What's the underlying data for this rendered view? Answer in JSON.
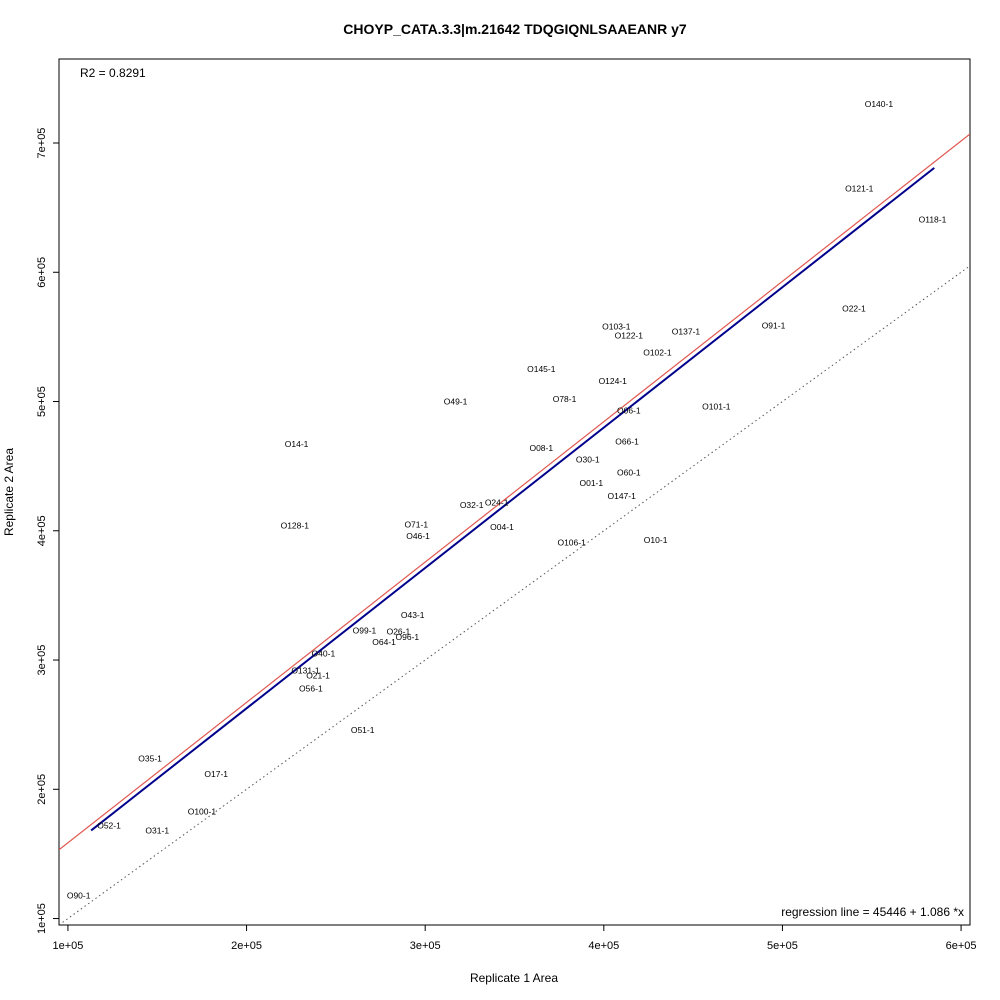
{
  "chart_data": {
    "type": "scatter",
    "title": "CHOYP_CATA.3.3|m.21642 TDQGIQNLSAAEANR y7",
    "xlabel": "Replicate 1 Area",
    "ylabel": "Replicate 2 Area",
    "xlim": [
      95000,
      605000
    ],
    "ylim": [
      95000,
      765000
    ],
    "x_ticks": [
      {
        "value": 100000,
        "label": "1e+05"
      },
      {
        "value": 200000,
        "label": "2e+05"
      },
      {
        "value": 300000,
        "label": "3e+05"
      },
      {
        "value": 400000,
        "label": "4e+05"
      },
      {
        "value": 500000,
        "label": "5e+05"
      },
      {
        "value": 600000,
        "label": "6e+05"
      }
    ],
    "y_ticks": [
      {
        "value": 100000,
        "label": "1e+05"
      },
      {
        "value": 200000,
        "label": "2e+05"
      },
      {
        "value": 300000,
        "label": "3e+05"
      },
      {
        "value": 400000,
        "label": "4e+05"
      },
      {
        "value": 500000,
        "label": "5e+05"
      },
      {
        "value": 600000,
        "label": "6e+05"
      },
      {
        "value": 700000,
        "label": "7e+05"
      }
    ],
    "grid": false,
    "r2_text": "R2 = 0.8291",
    "regression_text": "regression line = 45446 + 1.086 *x",
    "regression": {
      "intercept": 45446,
      "slope": 1.086,
      "x_range": [
        113000,
        585000
      ],
      "color": "#00008b"
    },
    "reference_line": {
      "intercept": 50000,
      "slope": 1.086,
      "color": "#e0564f"
    },
    "identity_line": {
      "intercept": 0,
      "slope": 1,
      "color": "#555555"
    },
    "points": [
      {
        "label": "O140-1",
        "x": 554000,
        "y": 730000
      },
      {
        "label": "O121-1",
        "x": 543000,
        "y": 665000
      },
      {
        "label": "O118-1",
        "x": 584000,
        "y": 641000
      },
      {
        "label": "O22-1",
        "x": 540000,
        "y": 572000
      },
      {
        "label": "O91-1",
        "x": 495000,
        "y": 559000
      },
      {
        "label": "O103-1",
        "x": 407000,
        "y": 558000
      },
      {
        "label": "O137-1",
        "x": 446000,
        "y": 554000
      },
      {
        "label": "O122-1",
        "x": 414000,
        "y": 551000
      },
      {
        "label": "O102-1",
        "x": 430000,
        "y": 538000
      },
      {
        "label": "O145-1",
        "x": 365000,
        "y": 525000
      },
      {
        "label": "O124-1",
        "x": 405000,
        "y": 516000
      },
      {
        "label": "O78-1",
        "x": 378000,
        "y": 502000
      },
      {
        "label": "O49-1",
        "x": 317000,
        "y": 500000
      },
      {
        "label": "O101-1",
        "x": 463000,
        "y": 496000
      },
      {
        "label": "O06-1",
        "x": 414000,
        "y": 493000
      },
      {
        "label": "O66-1",
        "x": 413000,
        "y": 469000
      },
      {
        "label": "O14-1",
        "x": 228000,
        "y": 467000
      },
      {
        "label": "O08-1",
        "x": 365000,
        "y": 464000
      },
      {
        "label": "O30-1",
        "x": 391000,
        "y": 455000
      },
      {
        "label": "O60-1",
        "x": 414000,
        "y": 445000
      },
      {
        "label": "O01-1",
        "x": 393000,
        "y": 437000
      },
      {
        "label": "O147-1",
        "x": 410000,
        "y": 427000
      },
      {
        "label": "O24-1",
        "x": 340000,
        "y": 422000
      },
      {
        "label": "O32-1",
        "x": 326000,
        "y": 420000
      },
      {
        "label": "O71-1",
        "x": 295000,
        "y": 405000
      },
      {
        "label": "O128-1",
        "x": 227000,
        "y": 404000
      },
      {
        "label": "O04-1",
        "x": 343000,
        "y": 403000
      },
      {
        "label": "O46-1",
        "x": 296000,
        "y": 396000
      },
      {
        "label": "O10-1",
        "x": 429000,
        "y": 393000
      },
      {
        "label": "O106-1",
        "x": 382000,
        "y": 391000
      },
      {
        "label": "O43-1",
        "x": 293000,
        "y": 335000
      },
      {
        "label": "O99-1",
        "x": 266000,
        "y": 323000
      },
      {
        "label": "O26-1",
        "x": 285000,
        "y": 322000
      },
      {
        "label": "O96-1",
        "x": 290000,
        "y": 318000
      },
      {
        "label": "O64-1",
        "x": 277000,
        "y": 314000
      },
      {
        "label": "O40-1",
        "x": 243000,
        "y": 305000
      },
      {
        "label": "O131-1",
        "x": 233000,
        "y": 292000
      },
      {
        "label": "O21-1",
        "x": 240000,
        "y": 288000
      },
      {
        "label": "O56-1",
        "x": 236000,
        "y": 278000
      },
      {
        "label": "O51-1",
        "x": 265000,
        "y": 246000
      },
      {
        "label": "O35-1",
        "x": 146000,
        "y": 224000
      },
      {
        "label": "O17-1",
        "x": 183000,
        "y": 212000
      },
      {
        "label": "O100-1",
        "x": 175000,
        "y": 183000
      },
      {
        "label": "O52-1",
        "x": 123000,
        "y": 172000
      },
      {
        "label": "O31-1",
        "x": 150000,
        "y": 168000
      },
      {
        "label": "O90-1",
        "x": 106000,
        "y": 118000
      }
    ]
  }
}
